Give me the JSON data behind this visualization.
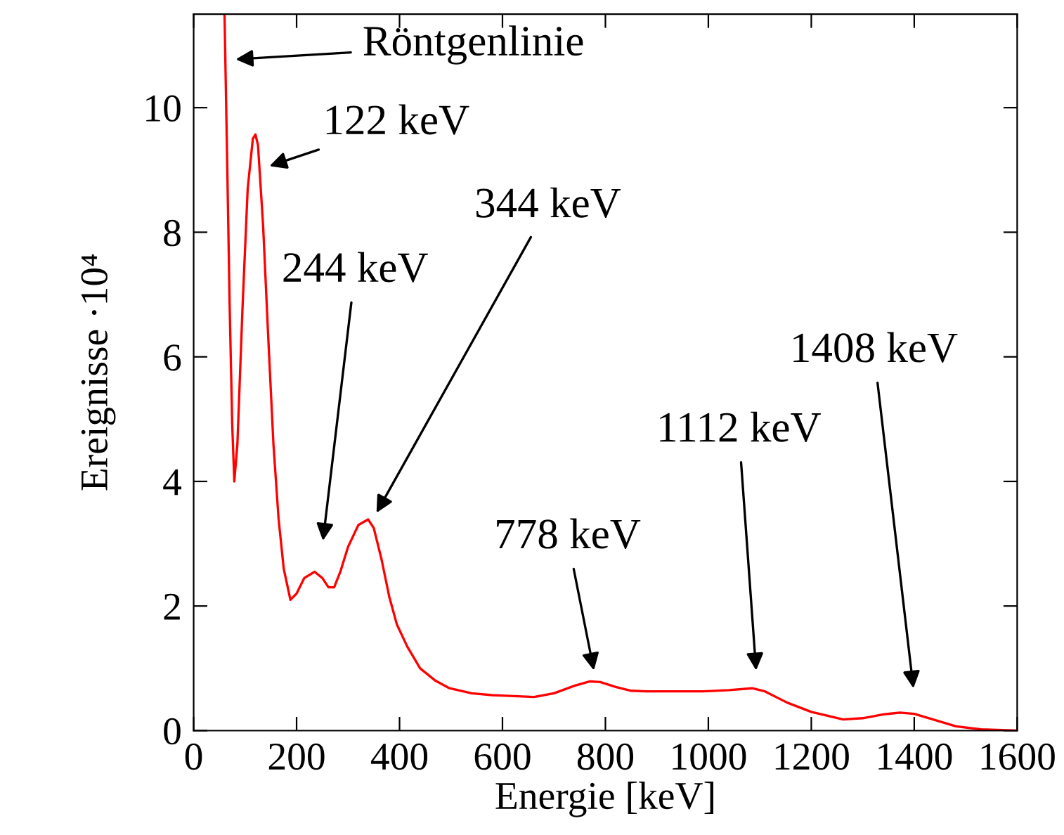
{
  "chart_data": {
    "type": "line",
    "xlabel": "Energie [keV]",
    "ylabel": "Ereignisse ·10⁴",
    "xlim": [
      0,
      1600
    ],
    "ylim": [
      0,
      11.5
    ],
    "xticks": [
      0,
      200,
      400,
      600,
      800,
      1000,
      1200,
      1400,
      1600
    ],
    "yticks": [
      0,
      2,
      4,
      6,
      8,
      10
    ],
    "grid": false,
    "legend": false,
    "marker": "none",
    "line_style": "solid",
    "series": [
      {
        "color": "#ff0000",
        "x": [
          60,
          65,
          70,
          75,
          79,
          85,
          95,
          105,
          115,
          120,
          125,
          135,
          145,
          155,
          165,
          175,
          188,
          200,
          215,
          235,
          250,
          262,
          273,
          285,
          300,
          320,
          339,
          350,
          365,
          380,
          395,
          415,
          440,
          470,
          497,
          540,
          580,
          607,
          661,
          700,
          740,
          770,
          790,
          820,
          850,
          880,
          940,
          989,
          1040,
          1085,
          1110,
          1153,
          1200,
          1262,
          1300,
          1340,
          1372,
          1400,
          1440,
          1481,
          1530,
          1600
        ],
        "values": [
          11.5,
          9.2,
          6.8,
          4.9,
          4.0,
          4.6,
          6.8,
          8.7,
          9.5,
          9.57,
          9.4,
          8.1,
          6.3,
          4.6,
          3.4,
          2.6,
          2.1,
          2.2,
          2.45,
          2.55,
          2.45,
          2.3,
          2.3,
          2.55,
          2.95,
          3.3,
          3.39,
          3.25,
          2.75,
          2.15,
          1.7,
          1.35,
          1.0,
          0.8,
          0.68,
          0.6,
          0.57,
          0.56,
          0.54,
          0.6,
          0.72,
          0.79,
          0.78,
          0.7,
          0.64,
          0.63,
          0.63,
          0.63,
          0.65,
          0.68,
          0.63,
          0.45,
          0.3,
          0.18,
          0.2,
          0.26,
          0.29,
          0.27,
          0.17,
          0.07,
          0.02,
          0.0
        ]
      }
    ],
    "annotations": [
      "Röntgenlinie",
      "122 keV",
      "244 keV",
      "344 keV",
      "778 keV",
      "1112 keV",
      "1408 keV"
    ]
  }
}
